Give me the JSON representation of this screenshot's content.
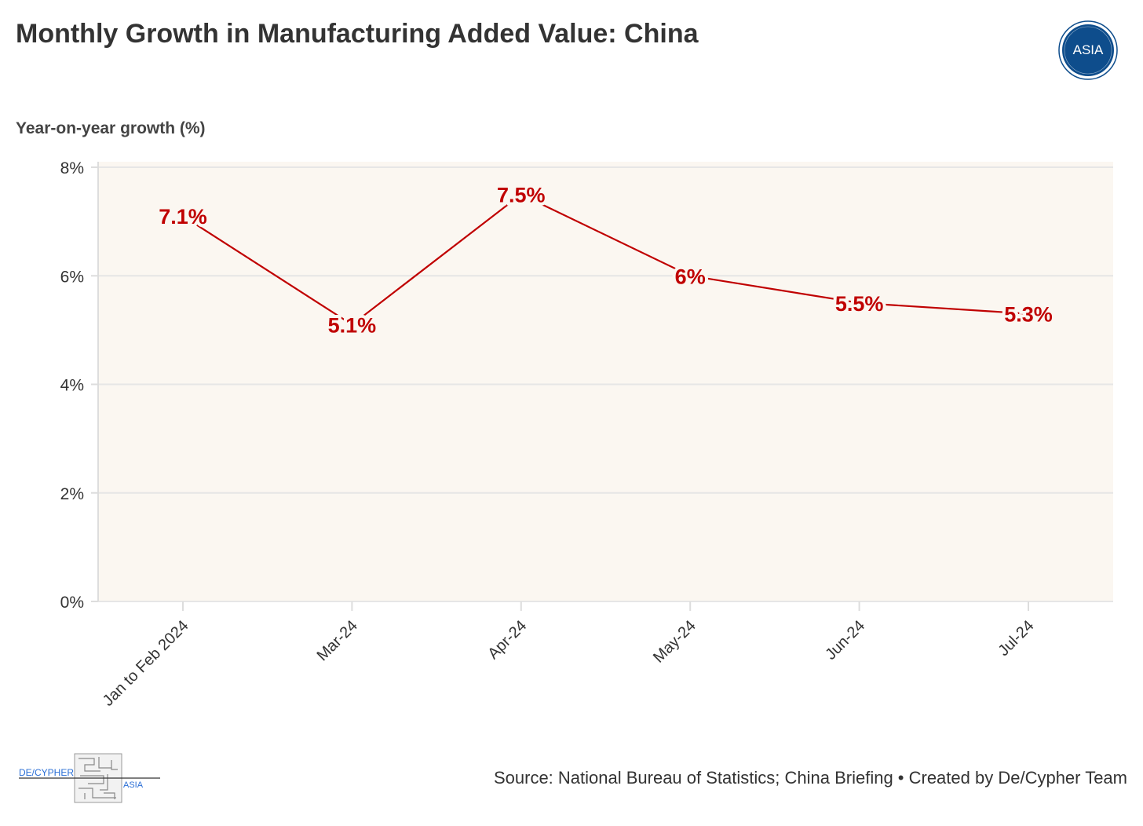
{
  "header": {
    "title": "Monthly Growth in Manufacturing Added Value: China"
  },
  "logo": {
    "text": "ASIA"
  },
  "footer": {
    "source": "Source: National Bureau of Statistics; China Briefing • Created by De/Cypher Team",
    "logo_left": "DE/CYPHER",
    "logo_right": "ASIA"
  },
  "colors": {
    "line": "#c00000",
    "plot_bg": "#fbf7f1",
    "grid": "#e6e6e6",
    "logo_blue": "#0e4d8c"
  },
  "chart_data": {
    "type": "line",
    "title": "Monthly Growth in Manufacturing Added Value: China",
    "xlabel": "",
    "ylabel": "Year-on-year growth (%)",
    "categories": [
      "Jan to Feb 2024",
      "Mar-24",
      "Apr-24",
      "May-24",
      "Jun-24",
      "Jul-24"
    ],
    "values": [
      7.1,
      5.1,
      7.5,
      6,
      5.5,
      5.3
    ],
    "data_labels": [
      "7.1%",
      "5.1%",
      "7.5%",
      "6%",
      "5.5%",
      "5.3%"
    ],
    "ylim": [
      0,
      8
    ],
    "yticks": [
      0,
      2,
      4,
      6,
      8
    ],
    "ytick_labels": [
      "0%",
      "2%",
      "4%",
      "6%",
      "8%"
    ],
    "grid": true
  }
}
